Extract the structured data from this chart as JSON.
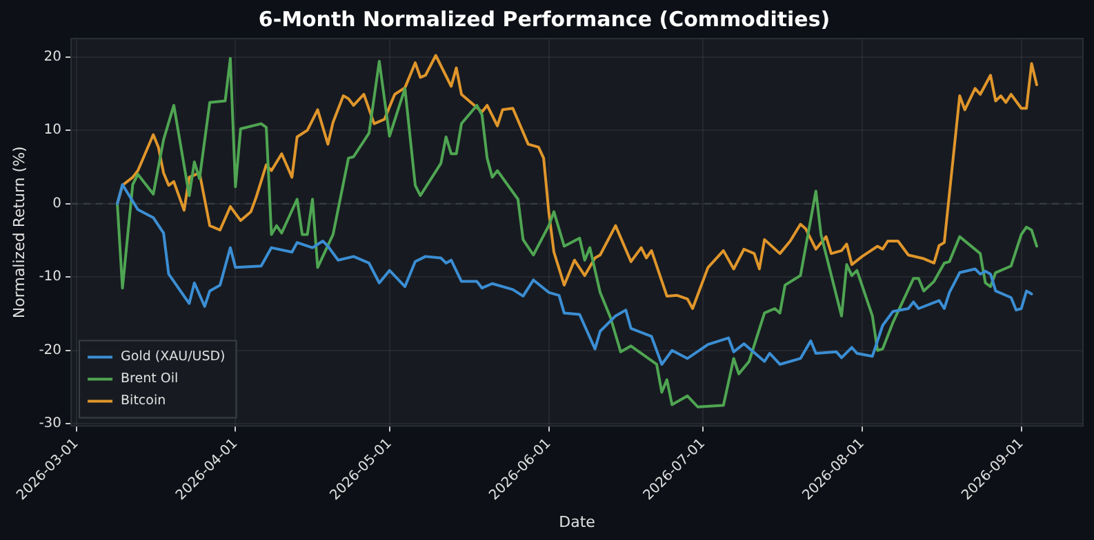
{
  "chart_data": {
    "type": "line",
    "title": "6-Month Normalized Performance (Commodities)",
    "xlabel": "Date",
    "ylabel": "Normalized Return (%)",
    "xlim": [
      "2026-02-28",
      "2026-09-13"
    ],
    "ylim": [
      -30.3,
      22.5
    ],
    "xticks": [
      "2026-03-01",
      "2026-04-01",
      "2026-05-01",
      "2026-06-01",
      "2026-07-01",
      "2026-08-01",
      "2026-09-01"
    ],
    "yticks": [
      -30,
      -20,
      -10,
      0,
      10,
      20
    ],
    "grid": true,
    "legend": "bottom left",
    "marker": "none",
    "line_style": "solid",
    "ref_lines": [
      {
        "axis": "y",
        "value": 0,
        "line_style": "dashed",
        "color": "#3a3f47"
      }
    ],
    "series": [
      {
        "name": "Gold (XAU/USD)",
        "color": "#3b8ed4",
        "x": [
          "2026-03-09",
          "2026-03-10",
          "2026-03-13",
          "2026-03-16",
          "2026-03-18",
          "2026-03-19",
          "2026-03-23",
          "2026-03-24",
          "2026-03-26",
          "2026-03-27",
          "2026-03-29",
          "2026-03-31",
          "2026-04-01",
          "2026-04-06",
          "2026-04-08",
          "2026-04-12",
          "2026-04-13",
          "2026-04-16",
          "2026-04-18",
          "2026-04-19",
          "2026-04-21",
          "2026-04-24",
          "2026-04-27",
          "2026-04-29",
          "2026-05-01",
          "2026-05-04",
          "2026-05-06",
          "2026-05-08",
          "2026-05-11",
          "2026-05-12",
          "2026-05-13",
          "2026-05-15",
          "2026-05-18",
          "2026-05-19",
          "2026-05-21",
          "2026-05-25",
          "2026-05-27",
          "2026-05-29",
          "2026-06-01",
          "2026-06-03",
          "2026-06-04",
          "2026-06-07",
          "2026-06-10",
          "2026-06-11",
          "2026-06-14",
          "2026-06-16",
          "2026-06-17",
          "2026-06-21",
          "2026-06-23",
          "2026-06-25",
          "2026-06-28",
          "2026-07-02",
          "2026-07-06",
          "2026-07-07",
          "2026-07-09",
          "2026-07-13",
          "2026-07-14",
          "2026-07-16",
          "2026-07-20",
          "2026-07-22",
          "2026-07-23",
          "2026-07-27",
          "2026-07-28",
          "2026-07-30",
          "2026-07-31",
          "2026-08-03",
          "2026-08-05",
          "2026-08-07",
          "2026-08-10",
          "2026-08-11",
          "2026-08-12",
          "2026-08-16",
          "2026-08-17",
          "2026-08-18",
          "2026-08-20",
          "2026-08-23",
          "2026-08-24",
          "2026-08-25",
          "2026-08-26",
          "2026-08-27",
          "2026-08-30",
          "2026-08-31",
          "2026-09-01",
          "2026-09-02",
          "2026-09-03"
        ],
        "values": [
          0,
          2.6,
          -0.8,
          -1.9,
          -4,
          -9.6,
          -13.6,
          -10.8,
          -14,
          -11.9,
          -11.1,
          -6,
          -8.7,
          -8.5,
          -6,
          -6.6,
          -5.3,
          -6,
          -5.1,
          -5.8,
          -7.7,
          -7.2,
          -8.1,
          -10.8,
          -9.1,
          -11.3,
          -7.9,
          -7.2,
          -7.4,
          -8.1,
          -7.7,
          -10.6,
          -10.6,
          -11.5,
          -10.9,
          -11.7,
          -12.6,
          -10.4,
          -12.1,
          -12.5,
          -14.9,
          -15.1,
          -19.8,
          -17.4,
          -15.3,
          -14.5,
          -17,
          -18.1,
          -21.9,
          -20,
          -21.1,
          -19.2,
          -18.3,
          -20.2,
          -19.1,
          -21.5,
          -20.4,
          -21.9,
          -21.1,
          -18.7,
          -20.4,
          -20.2,
          -21,
          -19.6,
          -20.4,
          -20.8,
          -16.6,
          -14.7,
          -14.3,
          -13.4,
          -14.3,
          -13.2,
          -14.3,
          -12.1,
          -9.4,
          -8.9,
          -9.6,
          -9.2,
          -9.6,
          -11.9,
          -12.8,
          -14.5,
          -14.3,
          -11.9,
          -12.3
        ]
      },
      {
        "name": "Brent Oil",
        "color": "#4fa552",
        "x": [
          "2026-03-09",
          "2026-03-10",
          "2026-03-12",
          "2026-03-13",
          "2026-03-16",
          "2026-03-18",
          "2026-03-20",
          "2026-03-23",
          "2026-03-24",
          "2026-03-25",
          "2026-03-27",
          "2026-03-30",
          "2026-03-31",
          "2026-04-01",
          "2026-04-02",
          "2026-04-06",
          "2026-04-07",
          "2026-04-08",
          "2026-04-09",
          "2026-04-10",
          "2026-04-13",
          "2026-04-14",
          "2026-04-15",
          "2026-04-16",
          "2026-04-17",
          "2026-04-20",
          "2026-04-23",
          "2026-04-24",
          "2026-04-27",
          "2026-04-29",
          "2026-05-01",
          "2026-05-04",
          "2026-05-06",
          "2026-05-07",
          "2026-05-11",
          "2026-05-12",
          "2026-05-13",
          "2026-05-14",
          "2026-05-15",
          "2026-05-18",
          "2026-05-19",
          "2026-05-20",
          "2026-05-21",
          "2026-05-22",
          "2026-05-26",
          "2026-05-27",
          "2026-05-29",
          "2026-06-01",
          "2026-06-02",
          "2026-06-04",
          "2026-06-07",
          "2026-06-08",
          "2026-06-09",
          "2026-06-11",
          "2026-06-13",
          "2026-06-15",
          "2026-06-17",
          "2026-06-22",
          "2026-06-23",
          "2026-06-24",
          "2026-06-25",
          "2026-06-28",
          "2026-06-30",
          "2026-07-05",
          "2026-07-07",
          "2026-07-08",
          "2026-07-10",
          "2026-07-13",
          "2026-07-15",
          "2026-07-16",
          "2026-07-17",
          "2026-07-20",
          "2026-07-23",
          "2026-07-24",
          "2026-07-28",
          "2026-07-29",
          "2026-07-30",
          "2026-07-31",
          "2026-08-03",
          "2026-08-04",
          "2026-08-05",
          "2026-08-07",
          "2026-08-11",
          "2026-08-12",
          "2026-08-13",
          "2026-08-15",
          "2026-08-17",
          "2026-08-18",
          "2026-08-20",
          "2026-08-24",
          "2026-08-25",
          "2026-08-26",
          "2026-08-27",
          "2026-08-30",
          "2026-09-01",
          "2026-09-02",
          "2026-09-03",
          "2026-09-04"
        ],
        "values": [
          0,
          -11.5,
          2.6,
          4,
          1.3,
          8.7,
          13.4,
          1.1,
          5.7,
          3.4,
          13.8,
          14,
          19.8,
          2.3,
          10.2,
          10.9,
          10.4,
          -4.2,
          -3,
          -4,
          0.6,
          -4.2,
          -4.2,
          0.6,
          -8.7,
          -4.2,
          6.2,
          6.4,
          9.6,
          19.4,
          9.2,
          15.7,
          2.5,
          1.1,
          5.5,
          9.1,
          6.8,
          6.8,
          10.9,
          13.4,
          12.1,
          6.2,
          3.6,
          4.5,
          0.6,
          -4.9,
          -7,
          -3,
          -1.1,
          -5.8,
          -4.7,
          -7.7,
          -6,
          -12.1,
          -15.5,
          -20.2,
          -19.4,
          -21.9,
          -25.7,
          -24,
          -27.4,
          -26.2,
          -27.7,
          -27.5,
          -21.1,
          -23.2,
          -21.5,
          -14.9,
          -14.3,
          -14.9,
          -11.1,
          -9.8,
          1.7,
          -4.2,
          -15.3,
          -8.3,
          -9.8,
          -9.1,
          -15.3,
          -20,
          -19.8,
          -16.2,
          -10.2,
          -10.2,
          -11.9,
          -10.6,
          -8.1,
          -7.9,
          -4.5,
          -6.8,
          -10.8,
          -11.3,
          -9.4,
          -8.5,
          -4.2,
          -3.2,
          -3.6,
          -5.8
        ]
      },
      {
        "name": "Bitcoin",
        "color": "#e0962b",
        "x": [
          "2026-03-09",
          "2026-03-10",
          "2026-03-12",
          "2026-03-13",
          "2026-03-16",
          "2026-03-17",
          "2026-03-18",
          "2026-03-19",
          "2026-03-20",
          "2026-03-22",
          "2026-03-23",
          "2026-03-25",
          "2026-03-27",
          "2026-03-29",
          "2026-03-31",
          "2026-04-02",
          "2026-04-04",
          "2026-04-05",
          "2026-04-07",
          "2026-04-08",
          "2026-04-10",
          "2026-04-12",
          "2026-04-13",
          "2026-04-15",
          "2026-04-17",
          "2026-04-19",
          "2026-04-20",
          "2026-04-22",
          "2026-04-23",
          "2026-04-24",
          "2026-04-26",
          "2026-04-28",
          "2026-04-30",
          "2026-05-02",
          "2026-05-04",
          "2026-05-06",
          "2026-05-07",
          "2026-05-08",
          "2026-05-10",
          "2026-05-13",
          "2026-05-14",
          "2026-05-15",
          "2026-05-19",
          "2026-05-20",
          "2026-05-22",
          "2026-05-23",
          "2026-05-25",
          "2026-05-28",
          "2026-05-30",
          "2026-05-31",
          "2026-06-01",
          "2026-06-02",
          "2026-06-04",
          "2026-06-06",
          "2026-06-08",
          "2026-06-10",
          "2026-06-11",
          "2026-06-14",
          "2026-06-17",
          "2026-06-19",
          "2026-06-20",
          "2026-06-21",
          "2026-06-24",
          "2026-06-26",
          "2026-06-28",
          "2026-06-29",
          "2026-07-02",
          "2026-07-05",
          "2026-07-07",
          "2026-07-09",
          "2026-07-11",
          "2026-07-12",
          "2026-07-13",
          "2026-07-16",
          "2026-07-18",
          "2026-07-20",
          "2026-07-21",
          "2026-07-23",
          "2026-07-25",
          "2026-07-26",
          "2026-07-28",
          "2026-07-29",
          "2026-07-30",
          "2026-08-01",
          "2026-08-04",
          "2026-08-05",
          "2026-08-06",
          "2026-08-08",
          "2026-08-10",
          "2026-08-13",
          "2026-08-15",
          "2026-08-16",
          "2026-08-17",
          "2026-08-20",
          "2026-08-21",
          "2026-08-23",
          "2026-08-24",
          "2026-08-26",
          "2026-08-27",
          "2026-08-28",
          "2026-08-29",
          "2026-08-30",
          "2026-09-01",
          "2026-09-02",
          "2026-09-03",
          "2026-09-04"
        ],
        "values": [
          0,
          2.5,
          3.6,
          4.5,
          9.4,
          7.7,
          4.2,
          2.5,
          3,
          -0.9,
          3.6,
          4.2,
          -3,
          -3.6,
          -0.4,
          -2.3,
          -1.1,
          0.8,
          5.3,
          4.5,
          6.8,
          3.6,
          9.1,
          10,
          12.8,
          8.1,
          11.1,
          14.7,
          14.3,
          13.4,
          14.9,
          10.9,
          11.5,
          14.9,
          15.8,
          19.2,
          17.2,
          17.5,
          20.2,
          16,
          18.5,
          14.9,
          12.5,
          13.4,
          10.6,
          12.8,
          13,
          8.1,
          7.7,
          6.2,
          -1.1,
          -6.6,
          -11.1,
          -7.7,
          -9.8,
          -7.4,
          -7,
          -3,
          -7.9,
          -6,
          -7.4,
          -6.4,
          -12.6,
          -12.5,
          -13,
          -14.3,
          -8.7,
          -6.4,
          -8.9,
          -6.2,
          -6.8,
          -8.9,
          -4.9,
          -6.8,
          -5.1,
          -2.8,
          -3.4,
          -6.2,
          -4.5,
          -6.8,
          -6.4,
          -5.5,
          -8.3,
          -7.2,
          -5.8,
          -6.2,
          -5.1,
          -5.1,
          -7,
          -7.5,
          -8.1,
          -5.7,
          -5.3,
          14.7,
          12.8,
          15.7,
          14.9,
          17.5,
          14,
          14.7,
          13.8,
          14.9,
          13,
          13,
          19.1,
          16.2
        ]
      }
    ]
  }
}
